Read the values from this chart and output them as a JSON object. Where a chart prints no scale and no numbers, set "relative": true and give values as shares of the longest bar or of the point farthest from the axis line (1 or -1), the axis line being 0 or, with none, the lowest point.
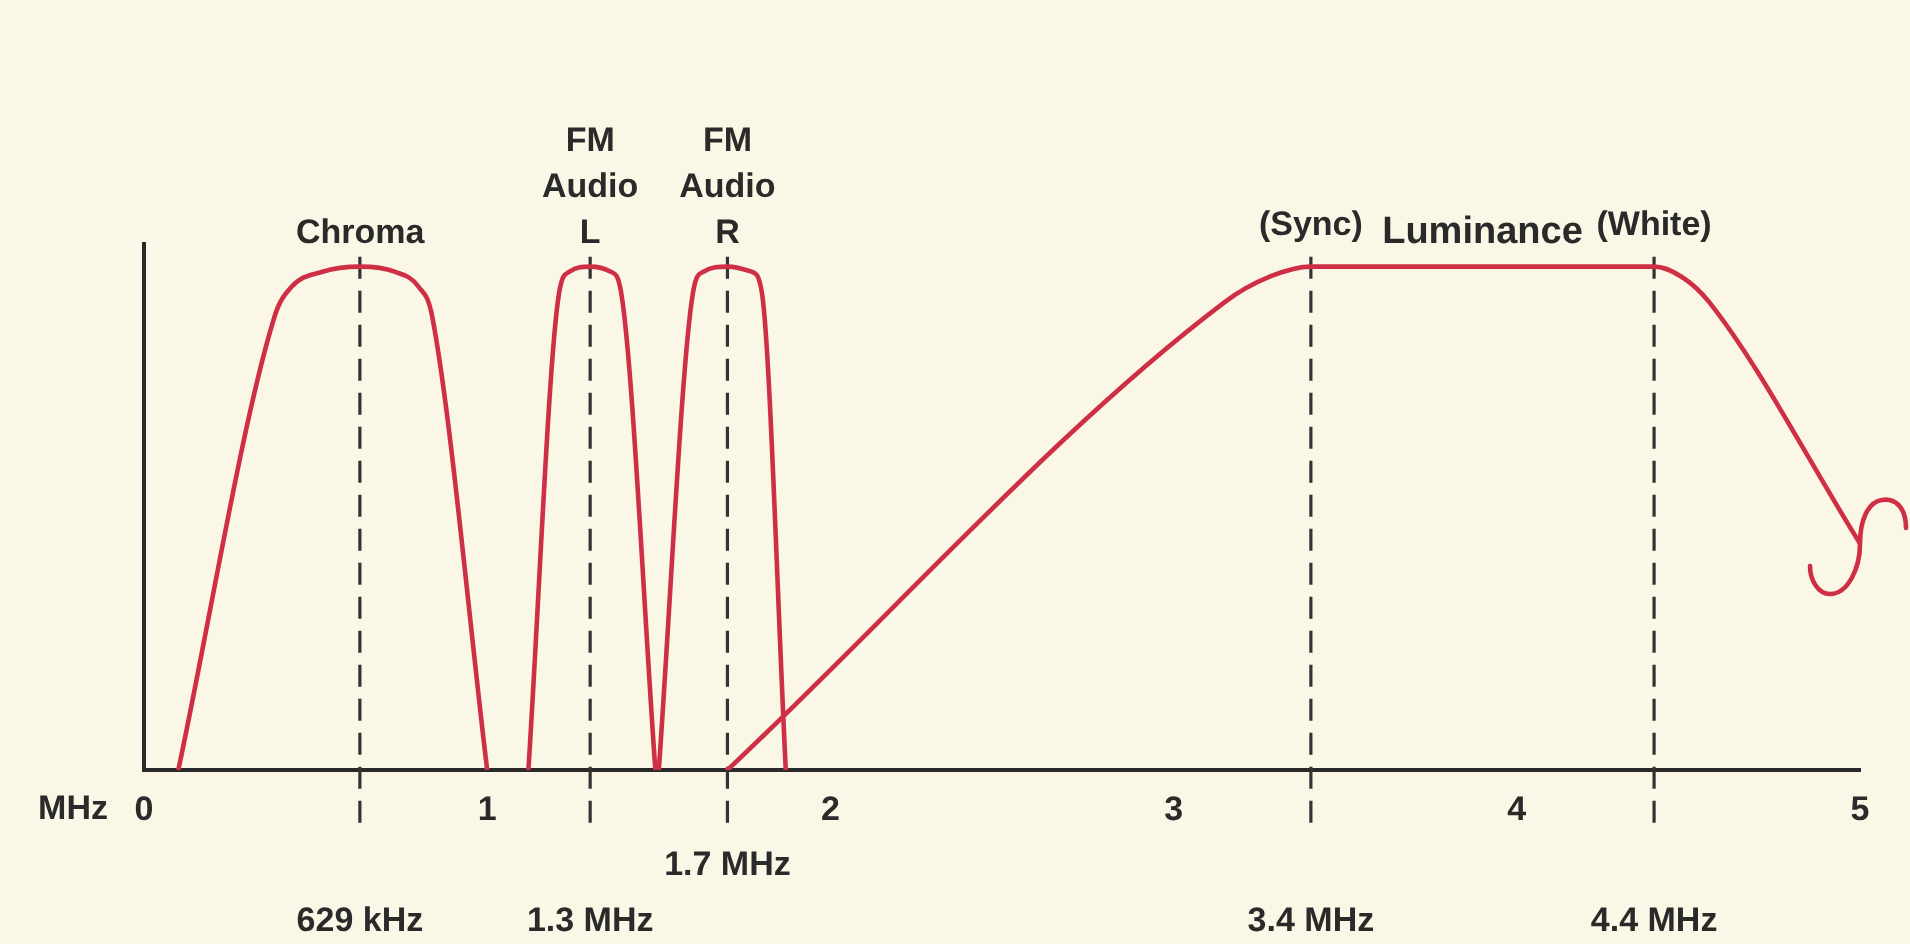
{
  "chart_data": {
    "type": "line",
    "relative": true,
    "xlabel": "MHz",
    "xlim": [
      0,
      5
    ],
    "xticks": [
      0,
      1,
      2,
      3,
      4,
      5
    ],
    "series": [
      {
        "name": "Chroma",
        "color": "#cf2f45",
        "x": [
          0.1,
          0.38,
          0.43,
          0.52,
          0.63,
          0.73,
          0.8,
          0.84,
          1.0
        ],
        "values": [
          0,
          0.9,
          0.96,
          0.99,
          1,
          0.99,
          0.96,
          0.9,
          0
        ]
      },
      {
        "name": "FM Audio L",
        "color": "#cf2f45",
        "x": [
          1.12,
          1.21,
          1.24,
          1.3,
          1.36,
          1.39,
          1.49
        ],
        "values": [
          0,
          0.95,
          0.99,
          1,
          0.99,
          0.95,
          0
        ]
      },
      {
        "name": "FM Audio R",
        "color": "#cf2f45",
        "x": [
          1.5,
          1.6,
          1.63,
          1.7,
          1.77,
          1.8,
          1.87
        ],
        "values": [
          0,
          0.95,
          0.99,
          1,
          0.99,
          0.95,
          0
        ]
      },
      {
        "name": "Luminance",
        "color": "#cf2f45",
        "x": [
          1.7,
          3.15,
          3.28,
          3.4,
          4.4,
          4.48,
          4.56,
          5.0
        ],
        "values": [
          0,
          0.93,
          0.98,
          1,
          1,
          0.98,
          0.93,
          0.45
        ]
      }
    ],
    "ref_lines": [
      {
        "axis": "x",
        "value": 0.629,
        "label": "629 kHz",
        "line_style": "dashed",
        "color": "#333333"
      },
      {
        "axis": "x",
        "value": 1.3,
        "label": "1.3 MHz",
        "line_style": "dashed",
        "color": "#333333"
      },
      {
        "axis": "x",
        "value": 1.7,
        "label": "1.7 MHz",
        "line_style": "dashed",
        "color": "#333333"
      },
      {
        "axis": "x",
        "value": 3.4,
        "label": "3.4 MHz",
        "line_style": "dashed",
        "color": "#333333"
      },
      {
        "axis": "x",
        "value": 4.4,
        "label": "4.4 MHz",
        "line_style": "dashed",
        "color": "#333333"
      }
    ],
    "annotations": [
      {
        "text": "(Sync)",
        "x": 3.4,
        "y": 1
      },
      {
        "text": "(White)",
        "x": 4.4,
        "y": 1
      }
    ]
  }
}
